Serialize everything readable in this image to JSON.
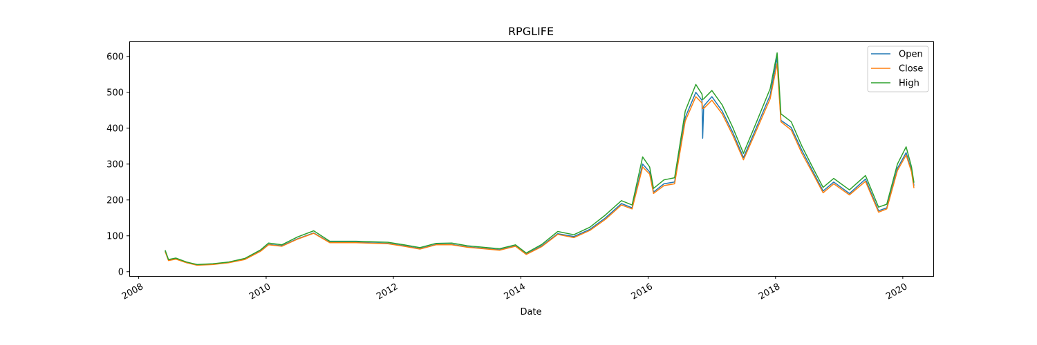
{
  "chart_data": {
    "type": "line",
    "title": "RPGLIFE",
    "xlabel": "Date",
    "ylabel": "",
    "xlim": [
      "2007-11-08",
      "2020-06-24"
    ],
    "ylim": [
      -12,
      642
    ],
    "grid": false,
    "legend_position": "top-right",
    "x_ticks": [
      "2008",
      "2010",
      "2012",
      "2014",
      "2016",
      "2018",
      "2020"
    ],
    "y_ticks": [
      0,
      100,
      200,
      300,
      400,
      500,
      600
    ],
    "series": [
      {
        "name": "Open",
        "color": "#1f77b4",
        "points": [
          [
            "2008-06-01",
            58
          ],
          [
            "2008-06-20",
            32
          ],
          [
            "2008-08-01",
            36
          ],
          [
            "2008-10-01",
            26
          ],
          [
            "2008-12-01",
            19
          ],
          [
            "2009-03-01",
            21
          ],
          [
            "2009-06-01",
            26
          ],
          [
            "2009-09-01",
            35
          ],
          [
            "2009-12-01",
            58
          ],
          [
            "2010-01-15",
            76
          ],
          [
            "2010-04-01",
            72
          ],
          [
            "2010-07-01",
            92
          ],
          [
            "2010-10-01",
            108
          ],
          [
            "2011-01-01",
            82
          ],
          [
            "2011-06-01",
            82
          ],
          [
            "2011-12-01",
            79
          ],
          [
            "2012-03-01",
            72
          ],
          [
            "2012-06-01",
            64
          ],
          [
            "2012-09-01",
            76
          ],
          [
            "2012-12-01",
            76
          ],
          [
            "2013-03-01",
            69
          ],
          [
            "2013-06-01",
            65
          ],
          [
            "2013-09-01",
            61
          ],
          [
            "2013-12-01",
            72
          ],
          [
            "2014-02-01",
            49
          ],
          [
            "2014-05-01",
            72
          ],
          [
            "2014-08-01",
            106
          ],
          [
            "2014-11-01",
            98
          ],
          [
            "2015-02-01",
            118
          ],
          [
            "2015-05-01",
            150
          ],
          [
            "2015-08-01",
            190
          ],
          [
            "2015-10-01",
            178
          ],
          [
            "2015-12-01",
            300
          ],
          [
            "2016-01-10",
            278
          ],
          [
            "2016-02-01",
            222
          ],
          [
            "2016-04-01",
            245
          ],
          [
            "2016-06-01",
            250
          ],
          [
            "2016-08-01",
            430
          ],
          [
            "2016-10-01",
            500
          ],
          [
            "2016-11-05",
            478
          ],
          [
            "2016-11-09",
            372
          ],
          [
            "2016-11-15",
            462
          ],
          [
            "2017-01-01",
            488
          ],
          [
            "2017-03-01",
            448
          ],
          [
            "2017-05-01",
            388
          ],
          [
            "2017-07-01",
            318
          ],
          [
            "2017-09-01",
            388
          ],
          [
            "2017-12-01",
            492
          ],
          [
            "2018-01-10",
            598
          ],
          [
            "2018-02-01",
            422
          ],
          [
            "2018-04-01",
            402
          ],
          [
            "2018-06-01",
            338
          ],
          [
            "2018-08-01",
            282
          ],
          [
            "2018-10-01",
            225
          ],
          [
            "2018-12-01",
            250
          ],
          [
            "2019-03-01",
            218
          ],
          [
            "2019-06-01",
            258
          ],
          [
            "2019-08-15",
            170
          ],
          [
            "2019-10-01",
            178
          ],
          [
            "2019-12-01",
            288
          ],
          [
            "2020-01-20",
            332
          ],
          [
            "2020-02-20",
            282
          ],
          [
            "2020-03-05",
            240
          ]
        ]
      },
      {
        "name": "Close",
        "color": "#ff7f0e",
        "points": [
          [
            "2008-06-01",
            56
          ],
          [
            "2008-06-20",
            31
          ],
          [
            "2008-08-01",
            35
          ],
          [
            "2008-10-01",
            25
          ],
          [
            "2008-12-01",
            18
          ],
          [
            "2009-03-01",
            20
          ],
          [
            "2009-06-01",
            25
          ],
          [
            "2009-09-01",
            34
          ],
          [
            "2009-12-01",
            57
          ],
          [
            "2010-01-15",
            75
          ],
          [
            "2010-04-01",
            71
          ],
          [
            "2010-07-01",
            91
          ],
          [
            "2010-10-01",
            107
          ],
          [
            "2011-01-01",
            81
          ],
          [
            "2011-06-01",
            81
          ],
          [
            "2011-12-01",
            78
          ],
          [
            "2012-03-01",
            71
          ],
          [
            "2012-06-01",
            63
          ],
          [
            "2012-09-01",
            75
          ],
          [
            "2012-12-01",
            75
          ],
          [
            "2013-03-01",
            68
          ],
          [
            "2013-06-01",
            64
          ],
          [
            "2013-09-01",
            60
          ],
          [
            "2013-12-01",
            71
          ],
          [
            "2014-02-01",
            48
          ],
          [
            "2014-05-01",
            70
          ],
          [
            "2014-08-01",
            104
          ],
          [
            "2014-11-01",
            95
          ],
          [
            "2015-02-01",
            115
          ],
          [
            "2015-05-01",
            146
          ],
          [
            "2015-08-01",
            186
          ],
          [
            "2015-10-01",
            175
          ],
          [
            "2015-12-01",
            292
          ],
          [
            "2016-01-10",
            272
          ],
          [
            "2016-02-01",
            218
          ],
          [
            "2016-04-01",
            240
          ],
          [
            "2016-06-01",
            245
          ],
          [
            "2016-08-01",
            420
          ],
          [
            "2016-10-01",
            488
          ],
          [
            "2016-11-05",
            470
          ],
          [
            "2016-11-09",
            455
          ],
          [
            "2016-11-15",
            455
          ],
          [
            "2017-01-01",
            478
          ],
          [
            "2017-03-01",
            440
          ],
          [
            "2017-05-01",
            380
          ],
          [
            "2017-07-01",
            312
          ],
          [
            "2017-09-01",
            380
          ],
          [
            "2017-12-01",
            482
          ],
          [
            "2018-01-10",
            580
          ],
          [
            "2018-02-01",
            418
          ],
          [
            "2018-04-01",
            395
          ],
          [
            "2018-06-01",
            330
          ],
          [
            "2018-08-01",
            276
          ],
          [
            "2018-10-01",
            220
          ],
          [
            "2018-12-01",
            245
          ],
          [
            "2019-03-01",
            214
          ],
          [
            "2019-06-01",
            252
          ],
          [
            "2019-08-15",
            166
          ],
          [
            "2019-10-01",
            175
          ],
          [
            "2019-12-01",
            282
          ],
          [
            "2020-01-20",
            325
          ],
          [
            "2020-02-20",
            278
          ],
          [
            "2020-03-05",
            233
          ]
        ]
      },
      {
        "name": "High",
        "color": "#2ca02c",
        "points": [
          [
            "2008-06-01",
            60
          ],
          [
            "2008-06-20",
            34
          ],
          [
            "2008-08-01",
            38
          ],
          [
            "2008-10-01",
            27
          ],
          [
            "2008-12-01",
            20
          ],
          [
            "2009-03-01",
            22
          ],
          [
            "2009-06-01",
            27
          ],
          [
            "2009-09-01",
            37
          ],
          [
            "2009-12-01",
            61
          ],
          [
            "2010-01-15",
            80
          ],
          [
            "2010-04-01",
            75
          ],
          [
            "2010-07-01",
            97
          ],
          [
            "2010-10-01",
            114
          ],
          [
            "2011-01-01",
            85
          ],
          [
            "2011-06-01",
            85
          ],
          [
            "2011-12-01",
            82
          ],
          [
            "2012-03-01",
            75
          ],
          [
            "2012-06-01",
            67
          ],
          [
            "2012-09-01",
            79
          ],
          [
            "2012-12-01",
            80
          ],
          [
            "2013-03-01",
            72
          ],
          [
            "2013-06-01",
            68
          ],
          [
            "2013-09-01",
            64
          ],
          [
            "2013-12-01",
            75
          ],
          [
            "2014-02-01",
            52
          ],
          [
            "2014-05-01",
            76
          ],
          [
            "2014-08-01",
            112
          ],
          [
            "2014-11-01",
            103
          ],
          [
            "2015-02-01",
            124
          ],
          [
            "2015-05-01",
            158
          ],
          [
            "2015-08-01",
            198
          ],
          [
            "2015-10-01",
            186
          ],
          [
            "2015-12-01",
            320
          ],
          [
            "2016-01-10",
            292
          ],
          [
            "2016-02-01",
            232
          ],
          [
            "2016-04-01",
            256
          ],
          [
            "2016-06-01",
            262
          ],
          [
            "2016-08-01",
            448
          ],
          [
            "2016-10-01",
            522
          ],
          [
            "2016-11-05",
            495
          ],
          [
            "2016-11-09",
            480
          ],
          [
            "2016-11-15",
            482
          ],
          [
            "2017-01-01",
            505
          ],
          [
            "2017-03-01",
            465
          ],
          [
            "2017-05-01",
            402
          ],
          [
            "2017-07-01",
            330
          ],
          [
            "2017-09-01",
            402
          ],
          [
            "2017-12-01",
            510
          ],
          [
            "2018-01-10",
            610
          ],
          [
            "2018-02-01",
            440
          ],
          [
            "2018-04-01",
            418
          ],
          [
            "2018-06-01",
            350
          ],
          [
            "2018-08-01",
            292
          ],
          [
            "2018-10-01",
            235
          ],
          [
            "2018-12-01",
            260
          ],
          [
            "2019-03-01",
            228
          ],
          [
            "2019-06-01",
            268
          ],
          [
            "2019-08-15",
            180
          ],
          [
            "2019-10-01",
            188
          ],
          [
            "2019-12-01",
            300
          ],
          [
            "2020-01-20",
            348
          ],
          [
            "2020-02-20",
            292
          ],
          [
            "2020-03-05",
            248
          ]
        ]
      }
    ]
  }
}
